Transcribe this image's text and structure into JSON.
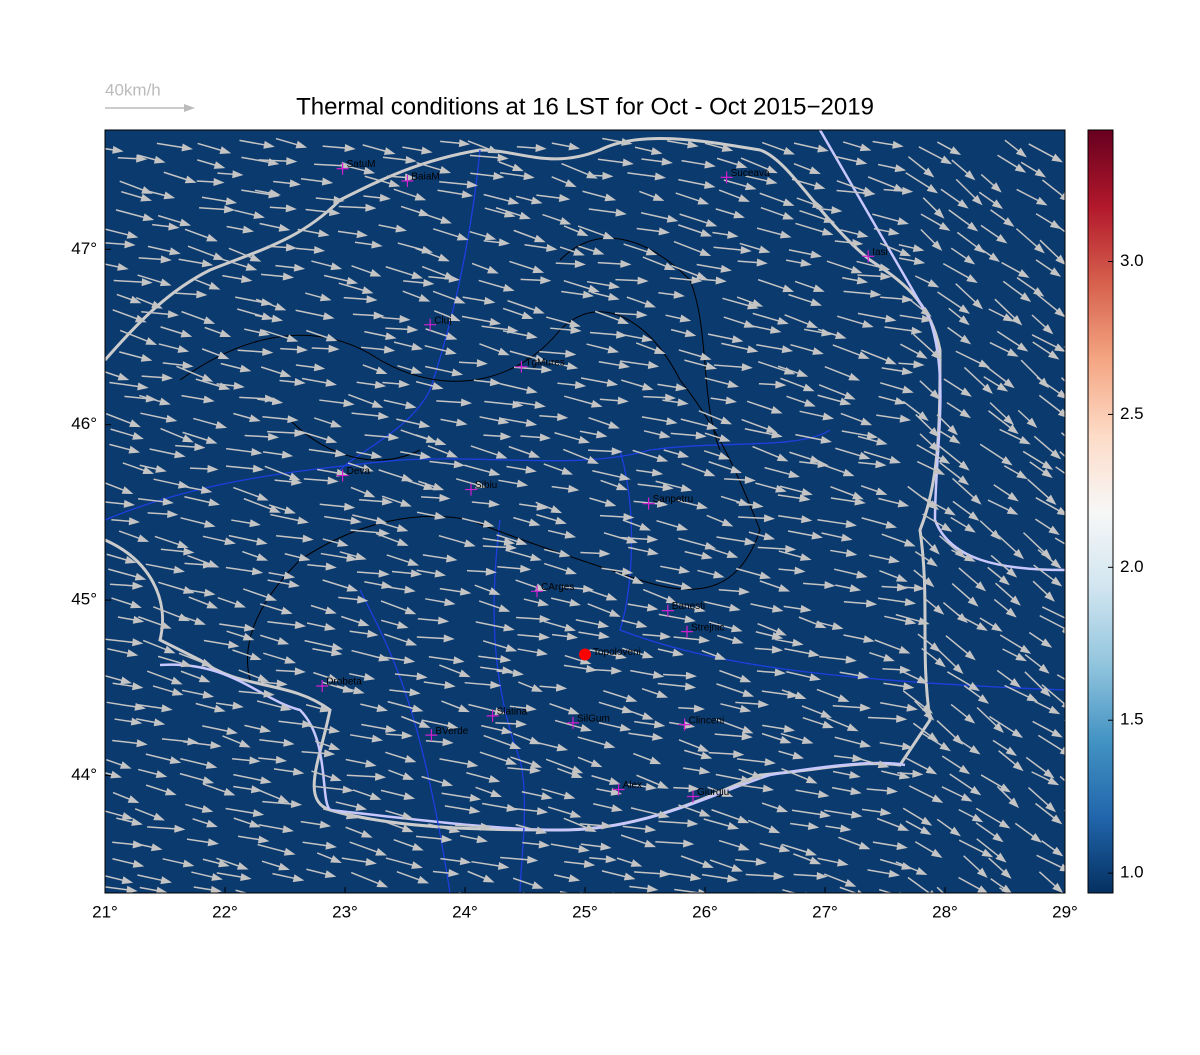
{
  "title": "Thermal conditions at 16 LST for Oct - Oct  2015−2019",
  "scale_label": "40km/h",
  "map": {
    "xlim": [
      21,
      29
    ],
    "ylim": [
      43.33,
      47.68
    ],
    "fill": "#0b3a6e",
    "xticks": [
      {
        "value": 21,
        "label": "21°"
      },
      {
        "value": 22,
        "label": "22°"
      },
      {
        "value": 23,
        "label": "23°"
      },
      {
        "value": 24,
        "label": "24°"
      },
      {
        "value": 25,
        "label": "25°"
      },
      {
        "value": 26,
        "label": "26°"
      },
      {
        "value": 27,
        "label": "27°"
      },
      {
        "value": 28,
        "label": "28°"
      },
      {
        "value": 29,
        "label": "29°"
      }
    ],
    "yticks": [
      {
        "value": 44,
        "label": "44°"
      },
      {
        "value": 45,
        "label": "45°"
      },
      {
        "value": 46,
        "label": "46°"
      },
      {
        "value": 47,
        "label": "47°"
      }
    ],
    "cities": [
      {
        "name": "SatuM",
        "lon": 22.98,
        "lat": 47.46
      },
      {
        "name": "BaiaM",
        "lon": 23.52,
        "lat": 47.39
      },
      {
        "name": "Suceava",
        "lon": 26.18,
        "lat": 47.41
      },
      {
        "name": "Iasi",
        "lon": 27.36,
        "lat": 46.96
      },
      {
        "name": "Cluj",
        "lon": 23.71,
        "lat": 46.57
      },
      {
        "name": "TgMures",
        "lon": 24.47,
        "lat": 46.33
      },
      {
        "name": "Deva",
        "lon": 22.98,
        "lat": 45.71
      },
      {
        "name": "Sibiu",
        "lon": 24.05,
        "lat": 45.63
      },
      {
        "name": "Sanpetru",
        "lon": 25.53,
        "lat": 45.55
      },
      {
        "name": "CArges",
        "lon": 24.6,
        "lat": 45.05
      },
      {
        "name": "Banesti",
        "lon": 25.69,
        "lat": 44.94
      },
      {
        "name": "Strejnic",
        "lon": 25.85,
        "lat": 44.82
      },
      {
        "name": "Drobeta",
        "lon": 22.81,
        "lat": 44.51
      },
      {
        "name": "Slatina",
        "lon": 24.23,
        "lat": 44.34
      },
      {
        "name": "BVerde",
        "lon": 23.72,
        "lat": 44.23
      },
      {
        "name": "SilGum",
        "lon": 24.9,
        "lat": 44.3
      },
      {
        "name": "Clinceni",
        "lon": 25.83,
        "lat": 44.29
      },
      {
        "name": "Alex",
        "lon": 25.28,
        "lat": 43.92
      },
      {
        "name": "Giurgiu",
        "lon": 25.9,
        "lat": 43.88
      }
    ],
    "site": {
      "name": "Topoloveni",
      "lon": 25.0,
      "lat": 44.69
    }
  },
  "colorbar": {
    "lim": [
      0.935,
      3.43
    ],
    "ticks": [
      {
        "value": 1,
        "label": "1.0"
      },
      1.5,
      {
        "value": 2,
        "label": "2.0"
      },
      2.5,
      {
        "value": 3,
        "label": "3.0"
      }
    ],
    "colors": [
      "#053061",
      "#2166ac",
      "#4393c3",
      "#92c5de",
      "#d1e5f0",
      "#f7f7f7",
      "#fddbc7",
      "#f4a582",
      "#d6604d",
      "#b2182b",
      "#67001f"
    ]
  }
}
